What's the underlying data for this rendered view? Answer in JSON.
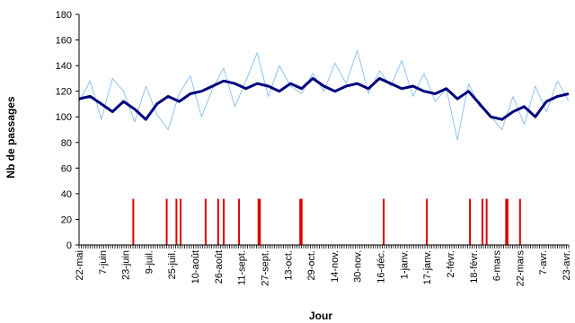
{
  "chart_data": {
    "type": "line",
    "title": "",
    "xlabel": "Jour",
    "ylabel": "Nb de passages",
    "ylim": [
      0,
      180
    ],
    "y_ticks": [
      0,
      20,
      40,
      60,
      80,
      100,
      120,
      140,
      160,
      180
    ],
    "x_ticks": [
      "22-mai",
      "7-juin",
      "23-juin",
      "9-juil.",
      "25-juil.",
      "10-août",
      "26-août",
      "11-sept.",
      "27-sept.",
      "13-oct.",
      "29-oct.",
      "14-nov.",
      "30-nov.",
      "16-déc.",
      "1-janv.",
      "17-janv.",
      "2-févr.",
      "18-févr.",
      "6-mars",
      "22-mars",
      "7-avr.",
      "23-avr."
    ],
    "grid": false,
    "legend": "none",
    "colors": {
      "daily": "#8ec2f0",
      "smoothed": "#00007f",
      "events": "#e00000"
    },
    "series": [
      {
        "role": "daily",
        "x": [
          0,
          8,
          16,
          24,
          32,
          40,
          48,
          56,
          64,
          72,
          80,
          88,
          96,
          104,
          112,
          120,
          128,
          136,
          144,
          152,
          160,
          168,
          176,
          184,
          192,
          200,
          208,
          216,
          224,
          232,
          240,
          248,
          256,
          264,
          272,
          280,
          288,
          296,
          304,
          312,
          320,
          328,
          336,
          344,
          352
        ],
        "y": [
          112,
          128,
          98,
          130,
          120,
          96,
          124,
          102,
          90,
          118,
          132,
          100,
          122,
          138,
          108,
          128,
          150,
          116,
          140,
          124,
          118,
          134,
          120,
          142,
          126,
          152,
          118,
          136,
          124,
          144,
          116,
          134,
          112,
          122,
          82,
          126,
          108,
          100,
          90,
          116,
          94,
          124,
          104,
          128,
          112
        ]
      },
      {
        "role": "smoothed",
        "x": [
          0,
          8,
          16,
          24,
          32,
          40,
          48,
          56,
          64,
          72,
          80,
          88,
          96,
          104,
          112,
          120,
          128,
          136,
          144,
          152,
          160,
          168,
          176,
          184,
          192,
          200,
          208,
          216,
          224,
          232,
          240,
          248,
          256,
          264,
          272,
          280,
          288,
          296,
          304,
          312,
          320,
          328,
          336,
          344,
          352
        ],
        "y": [
          114,
          116,
          110,
          104,
          112,
          106,
          98,
          110,
          116,
          112,
          118,
          120,
          124,
          128,
          126,
          122,
          126,
          124,
          120,
          126,
          122,
          130,
          124,
          120,
          124,
          126,
          122,
          130,
          126,
          122,
          124,
          120,
          118,
          122,
          114,
          120,
          110,
          100,
          98,
          104,
          108,
          100,
          112,
          116,
          118
        ]
      }
    ],
    "events_x": [
      39,
      63,
      70,
      73,
      91,
      100,
      104,
      115,
      129,
      130,
      159,
      160,
      219,
      250,
      281,
      290,
      293,
      307,
      308,
      317
    ],
    "events_height": 36
  }
}
